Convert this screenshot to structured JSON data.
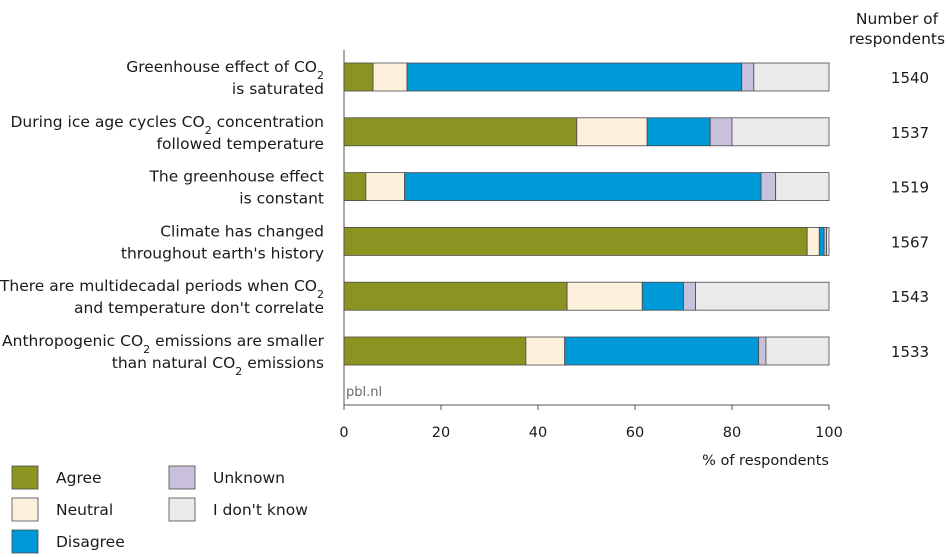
{
  "chart_data": {
    "type": "bar",
    "orientation": "horizontal",
    "stacked": true,
    "categories": [
      [
        "Greenhouse effect of CO₂",
        "is saturated"
      ],
      [
        "During ice age cycles CO₂ concentration",
        "followed temperature"
      ],
      [
        "The greenhouse effect",
        "is constant"
      ],
      [
        "Climate has changed",
        "throughout earth's history"
      ],
      [
        "There are multidecadal periods when CO₂",
        "and temperature don't correlate"
      ],
      [
        "Anthropogenic CO₂ emissions are smaller",
        "than natural CO₂ emissions"
      ]
    ],
    "series": [
      {
        "name": "Agree",
        "color": "#8c9421",
        "values": [
          6,
          48,
          4.5,
          95.5,
          46,
          37.5
        ]
      },
      {
        "name": "Neutral",
        "color": "#fdf0dc",
        "values": [
          7,
          14.5,
          8,
          2.5,
          15.5,
          8
        ]
      },
      {
        "name": "Disagree",
        "color": "#0099d8",
        "values": [
          69,
          13,
          73.5,
          1,
          8.5,
          40
        ]
      },
      {
        "name": "Unknown",
        "color": "#c9c0dc",
        "values": [
          2.5,
          4.5,
          3,
          0.5,
          2.5,
          1.5
        ]
      },
      {
        "name": "I don't know",
        "color": "#eaeaea",
        "values": [
          15.5,
          20,
          11,
          0.5,
          27.5,
          13
        ]
      }
    ],
    "respondents": [
      "1540",
      "1537",
      "1519",
      "1567",
      "1543",
      "1533"
    ],
    "respondents_header": [
      "Number of",
      "respondents"
    ],
    "xlabel": "% of respondents",
    "xlim": [
      0,
      100
    ],
    "xticks": [
      0,
      20,
      40,
      60,
      80,
      100
    ],
    "source": "pbl.nl",
    "legend_position": "bottom-left",
    "legend_order": [
      "Agree",
      "Unknown",
      "Neutral",
      "I don't know",
      "Disagree"
    ],
    "grid": false
  }
}
